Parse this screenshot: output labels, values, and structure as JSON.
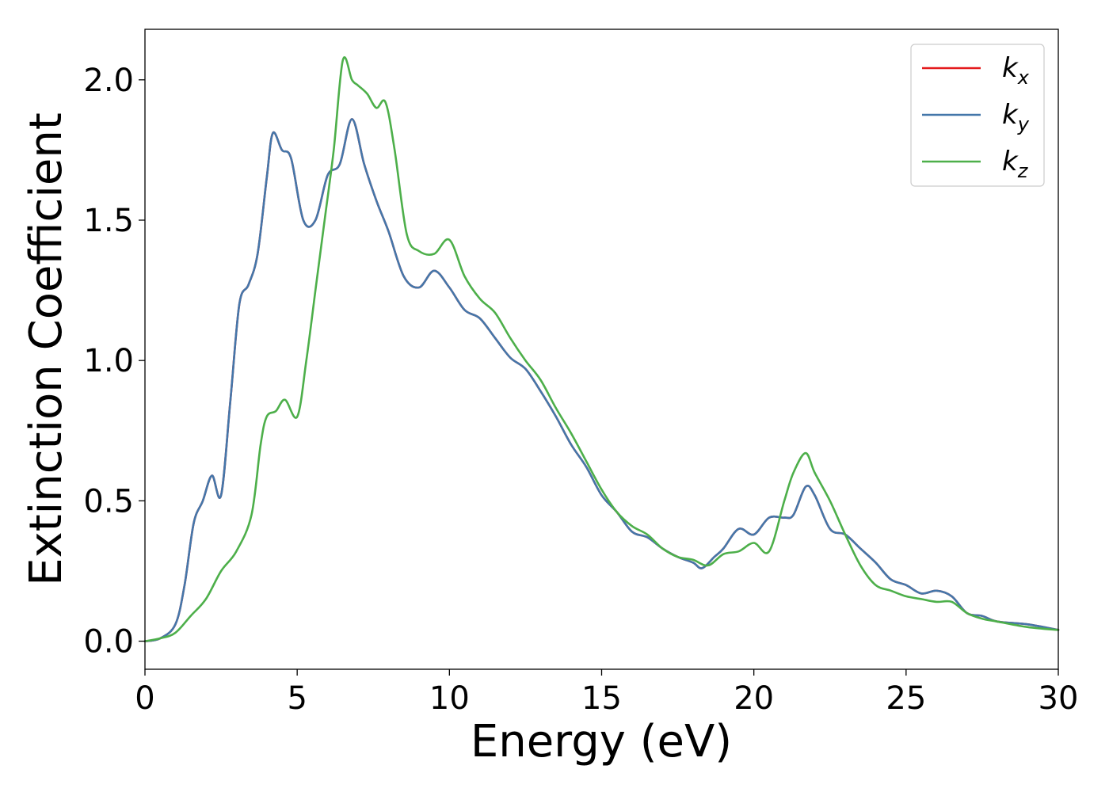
{
  "chart_data": {
    "type": "line",
    "title": "",
    "xlabel": "Energy (eV)",
    "ylabel": "Extinction Coefficient",
    "xlim": [
      0,
      30
    ],
    "ylim": [
      -0.1,
      2.18
    ],
    "xticks": [
      "0",
      "5",
      "10",
      "15",
      "20",
      "25",
      "30"
    ],
    "yticks": [
      "0.0",
      "0.5",
      "1.0",
      "1.5",
      "2.0"
    ],
    "grid": false,
    "legend_position": "top-right",
    "series": [
      {
        "name": "k_x",
        "label_main": "k",
        "label_sub": "x",
        "color": "#e41a1c",
        "x": [
          0,
          0.5,
          1.0,
          1.3,
          1.6,
          1.9,
          2.2,
          2.5,
          2.8,
          3.1,
          3.4,
          3.7,
          4.0,
          4.2,
          4.5,
          4.8,
          5.2,
          5.6,
          6.0,
          6.4,
          6.8,
          7.2,
          7.6,
          8.0,
          8.5,
          9.0,
          9.5,
          10.0,
          10.5,
          11.0,
          11.5,
          12.0,
          12.5,
          13.0,
          13.5,
          14.0,
          14.5,
          15.0,
          15.5,
          16.0,
          16.5,
          17.0,
          17.5,
          18.0,
          18.3,
          18.7,
          19.0,
          19.5,
          20.0,
          20.5,
          21.0,
          21.3,
          21.7,
          22.0,
          22.5,
          23.0,
          23.5,
          24.0,
          24.5,
          25.0,
          25.5,
          26.0,
          26.5,
          27.0,
          27.5,
          28.0,
          29.0,
          30.0
        ],
        "y": [
          0.0,
          0.01,
          0.06,
          0.2,
          0.42,
          0.5,
          0.59,
          0.52,
          0.85,
          1.2,
          1.27,
          1.38,
          1.65,
          1.81,
          1.75,
          1.72,
          1.5,
          1.5,
          1.66,
          1.7,
          1.86,
          1.7,
          1.57,
          1.46,
          1.3,
          1.26,
          1.32,
          1.26,
          1.18,
          1.15,
          1.08,
          1.01,
          0.97,
          0.89,
          0.8,
          0.7,
          0.62,
          0.52,
          0.46,
          0.39,
          0.37,
          0.33,
          0.3,
          0.28,
          0.26,
          0.3,
          0.33,
          0.4,
          0.38,
          0.44,
          0.44,
          0.45,
          0.55,
          0.52,
          0.4,
          0.38,
          0.33,
          0.28,
          0.22,
          0.2,
          0.17,
          0.18,
          0.16,
          0.1,
          0.09,
          0.07,
          0.06,
          0.04
        ]
      },
      {
        "name": "k_y",
        "label_main": "k",
        "label_sub": "y",
        "color": "#4477aa",
        "x": [
          0,
          0.5,
          1.0,
          1.3,
          1.6,
          1.9,
          2.2,
          2.5,
          2.8,
          3.1,
          3.4,
          3.7,
          4.0,
          4.2,
          4.5,
          4.8,
          5.2,
          5.6,
          6.0,
          6.4,
          6.8,
          7.2,
          7.6,
          8.0,
          8.5,
          9.0,
          9.5,
          10.0,
          10.5,
          11.0,
          11.5,
          12.0,
          12.5,
          13.0,
          13.5,
          14.0,
          14.5,
          15.0,
          15.5,
          16.0,
          16.5,
          17.0,
          17.5,
          18.0,
          18.3,
          18.7,
          19.0,
          19.5,
          20.0,
          20.5,
          21.0,
          21.3,
          21.7,
          22.0,
          22.5,
          23.0,
          23.5,
          24.0,
          24.5,
          25.0,
          25.5,
          26.0,
          26.5,
          27.0,
          27.5,
          28.0,
          29.0,
          30.0
        ],
        "y": [
          0.0,
          0.01,
          0.06,
          0.2,
          0.42,
          0.5,
          0.59,
          0.52,
          0.85,
          1.2,
          1.27,
          1.38,
          1.65,
          1.81,
          1.75,
          1.72,
          1.5,
          1.5,
          1.66,
          1.7,
          1.86,
          1.7,
          1.57,
          1.46,
          1.3,
          1.26,
          1.32,
          1.26,
          1.18,
          1.15,
          1.08,
          1.01,
          0.97,
          0.89,
          0.8,
          0.7,
          0.62,
          0.52,
          0.46,
          0.39,
          0.37,
          0.33,
          0.3,
          0.28,
          0.26,
          0.3,
          0.33,
          0.4,
          0.38,
          0.44,
          0.44,
          0.45,
          0.55,
          0.52,
          0.4,
          0.38,
          0.33,
          0.28,
          0.22,
          0.2,
          0.17,
          0.18,
          0.16,
          0.1,
          0.09,
          0.07,
          0.06,
          0.04
        ]
      },
      {
        "name": "k_z",
        "label_main": "k",
        "label_sub": "z",
        "color": "#4daf4a",
        "x": [
          0,
          0.5,
          1.0,
          1.5,
          2.0,
          2.5,
          3.0,
          3.5,
          3.8,
          4.0,
          4.3,
          4.6,
          5.0,
          5.3,
          5.6,
          5.9,
          6.2,
          6.5,
          6.8,
          7.0,
          7.3,
          7.6,
          7.9,
          8.2,
          8.6,
          9.0,
          9.5,
          10.0,
          10.5,
          11.0,
          11.5,
          12.0,
          12.5,
          13.0,
          13.5,
          14.0,
          14.5,
          15.0,
          15.5,
          16.0,
          16.5,
          17.0,
          17.5,
          18.0,
          18.5,
          19.0,
          19.5,
          20.0,
          20.5,
          21.0,
          21.3,
          21.7,
          22.0,
          22.5,
          23.0,
          23.5,
          24.0,
          24.5,
          25.0,
          25.5,
          26.0,
          26.5,
          27.0,
          27.5,
          28.0,
          29.0,
          30.0
        ],
        "y": [
          0.0,
          0.01,
          0.03,
          0.09,
          0.15,
          0.25,
          0.32,
          0.45,
          0.7,
          0.8,
          0.82,
          0.86,
          0.8,
          1.0,
          1.25,
          1.5,
          1.75,
          2.07,
          2.0,
          1.98,
          1.95,
          1.9,
          1.92,
          1.75,
          1.45,
          1.39,
          1.38,
          1.43,
          1.3,
          1.22,
          1.17,
          1.08,
          1.0,
          0.93,
          0.83,
          0.74,
          0.64,
          0.54,
          0.46,
          0.41,
          0.38,
          0.33,
          0.3,
          0.29,
          0.27,
          0.31,
          0.32,
          0.35,
          0.32,
          0.5,
          0.6,
          0.67,
          0.6,
          0.5,
          0.38,
          0.27,
          0.2,
          0.18,
          0.16,
          0.15,
          0.14,
          0.14,
          0.1,
          0.08,
          0.07,
          0.05,
          0.04
        ]
      }
    ]
  }
}
